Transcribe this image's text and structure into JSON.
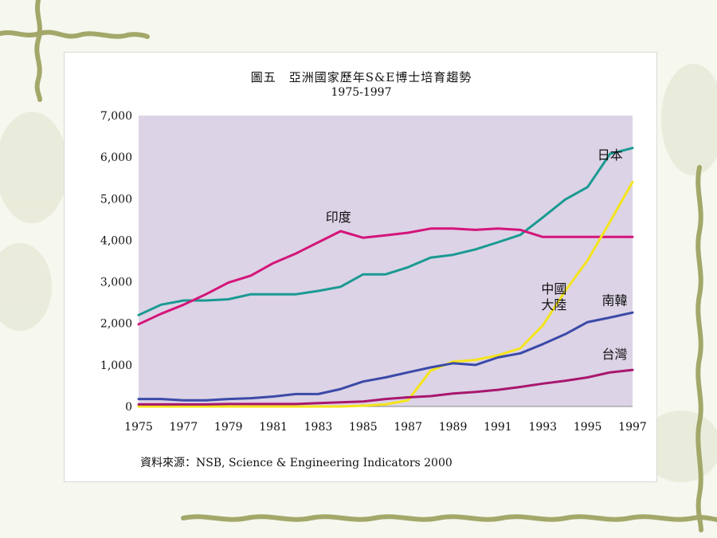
{
  "slide": {
    "background": "#f6f7ee",
    "decoration": "green-vine-border"
  },
  "chart_data": {
    "type": "line",
    "title": "圖五　亞洲國家歷年S&E博士培育趨勢",
    "subtitle": "1975-1997",
    "source": "資料來源：NSB, Science & Engineering Indicators 2000",
    "plot_background": "#dcd3e6",
    "x": [
      1975,
      1976,
      1977,
      1978,
      1979,
      1980,
      1981,
      1982,
      1983,
      1984,
      1985,
      1986,
      1987,
      1988,
      1989,
      1990,
      1991,
      1992,
      1993,
      1994,
      1995,
      1996,
      1997
    ],
    "x_ticks": [
      "1975",
      "1977",
      "1979",
      "1981",
      "1983",
      "1985",
      "1987",
      "1989",
      "1991",
      "1993",
      "1995",
      "1997"
    ],
    "y_ticks": [
      "7,000",
      "6,000",
      "5,000",
      "4,000",
      "3,000",
      "2,000",
      "1,000",
      "0"
    ],
    "y_tick_values": [
      7000,
      6000,
      5000,
      4000,
      3000,
      2000,
      1000,
      0
    ],
    "xlim": [
      1975,
      1997
    ],
    "ylim": [
      0,
      7000
    ],
    "grid": false,
    "series": [
      {
        "name": "日本",
        "color": "#1a9a92",
        "values": [
          2200,
          2450,
          2550,
          2550,
          2580,
          2700,
          2700,
          2700,
          2780,
          2880,
          3180,
          3180,
          3350,
          3580,
          3650,
          3780,
          3950,
          4130,
          4550,
          4980,
          5280,
          6080,
          6220
        ]
      },
      {
        "name": "印度",
        "color": "#d4157a",
        "values": [
          1980,
          2230,
          2450,
          2700,
          2980,
          3150,
          3450,
          3680,
          3950,
          4220,
          4060,
          4120,
          4180,
          4280,
          4280,
          4250,
          4280,
          4250,
          4080,
          4080,
          4080,
          4080,
          4080
        ]
      },
      {
        "name": "中國大陸",
        "color": "#f5e41a",
        "values": [
          0,
          0,
          0,
          0,
          0,
          0,
          0,
          0,
          0,
          0,
          20,
          50,
          150,
          860,
          1080,
          1120,
          1230,
          1400,
          1950,
          2780,
          3520,
          4450,
          5400
        ]
      },
      {
        "name": "南韓",
        "color": "#3b4aa8",
        "values": [
          180,
          180,
          150,
          150,
          180,
          200,
          240,
          300,
          300,
          420,
          600,
          700,
          820,
          940,
          1040,
          1000,
          1180,
          1280,
          1500,
          1740,
          2030,
          2140,
          2260
        ]
      },
      {
        "name": "台灣",
        "color": "#a8176e",
        "values": [
          50,
          50,
          50,
          50,
          60,
          60,
          60,
          60,
          80,
          100,
          120,
          180,
          220,
          250,
          310,
          350,
          400,
          470,
          550,
          620,
          700,
          820,
          880
        ]
      }
    ],
    "labels": [
      {
        "series": "日本",
        "lines": [
          "日本"
        ],
        "at_x": 1996.0,
        "at_y": 5950
      },
      {
        "series": "印度",
        "lines": [
          "印度"
        ],
        "at_x": 1983.9,
        "at_y": 4450
      },
      {
        "series": "中國大陸",
        "lines": [
          "中國",
          "大陸"
        ],
        "at_x": 1993.5,
        "at_y": 2720
      },
      {
        "series": "南韓",
        "lines": [
          "南韓"
        ],
        "at_x": 1996.2,
        "at_y": 2450
      },
      {
        "series": "台灣",
        "lines": [
          "台灣"
        ],
        "at_x": 1996.2,
        "at_y": 1150
      }
    ]
  }
}
